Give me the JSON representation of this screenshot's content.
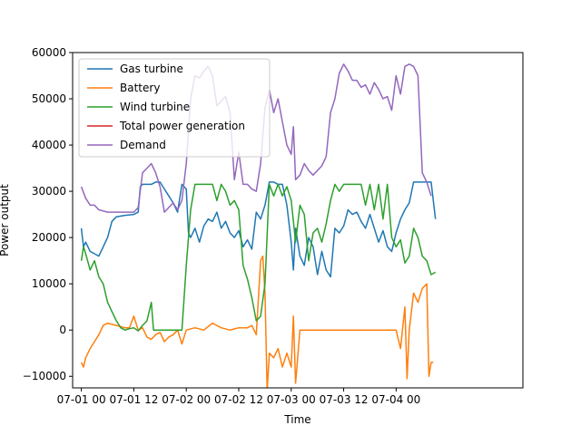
{
  "chart_data": {
    "type": "line",
    "title": "",
    "xlabel": "Time",
    "ylabel": "Power output",
    "x_unit": "hours since 07-01 00",
    "xlim": [
      -2,
      101
    ],
    "ylim": [
      -12500,
      60000
    ],
    "x_ticks": [
      {
        "x": 0,
        "label": "07-01 00"
      },
      {
        "x": 12,
        "label": "07-01 12"
      },
      {
        "x": 24,
        "label": "07-02 00"
      },
      {
        "x": 36,
        "label": "07-02 12"
      },
      {
        "x": 48,
        "label": "07-03 00"
      },
      {
        "x": 60,
        "label": "07-03 12"
      },
      {
        "x": 72,
        "label": "07-04 00"
      }
    ],
    "y_ticks": [
      -10000,
      0,
      10000,
      20000,
      30000,
      40000,
      50000,
      60000
    ],
    "y_tick_labels": [
      "−10000",
      "0",
      "10000",
      "20000",
      "30000",
      "40000",
      "50000",
      "60000"
    ],
    "grid": false,
    "legend_position": "top-left",
    "series": [
      {
        "name": "Gas turbine",
        "color": "#1f77b4",
        "points": [
          [
            0,
            22000
          ],
          [
            0.5,
            18000
          ],
          [
            1,
            19000
          ],
          [
            2,
            17000
          ],
          [
            3,
            16500
          ],
          [
            4,
            16000
          ],
          [
            5,
            18000
          ],
          [
            6,
            20000
          ],
          [
            7,
            23500
          ],
          [
            8,
            24500
          ],
          [
            10,
            24800
          ],
          [
            12,
            25000
          ],
          [
            13,
            25500
          ],
          [
            13.5,
            31000
          ],
          [
            14,
            31500
          ],
          [
            16,
            31500
          ],
          [
            17,
            32000
          ],
          [
            18,
            32000
          ],
          [
            19,
            30500
          ],
          [
            20,
            29000
          ],
          [
            21,
            27500
          ],
          [
            22,
            25500
          ],
          [
            23,
            31500
          ],
          [
            24,
            30500
          ],
          [
            24.5,
            21000
          ],
          [
            25,
            20000
          ],
          [
            26,
            22000
          ],
          [
            27,
            19000
          ],
          [
            28,
            22500
          ],
          [
            29,
            24000
          ],
          [
            30,
            23500
          ],
          [
            31,
            25500
          ],
          [
            32,
            22000
          ],
          [
            33,
            23500
          ],
          [
            34,
            21000
          ],
          [
            35,
            20000
          ],
          [
            36,
            21500
          ],
          [
            37,
            18000
          ],
          [
            38,
            19500
          ],
          [
            39,
            17500
          ],
          [
            40,
            25500
          ],
          [
            41,
            24000
          ],
          [
            42,
            27000
          ],
          [
            43,
            32000
          ],
          [
            44,
            32000
          ],
          [
            45,
            31500
          ],
          [
            46,
            31500
          ],
          [
            47,
            27000
          ],
          [
            48,
            19000
          ],
          [
            48.5,
            13000
          ],
          [
            49,
            22000
          ],
          [
            50,
            16000
          ],
          [
            51,
            14000
          ],
          [
            52,
            20000
          ],
          [
            53,
            18000
          ],
          [
            54,
            12000
          ],
          [
            55,
            17000
          ],
          [
            56,
            13000
          ],
          [
            57,
            11500
          ],
          [
            58,
            22000
          ],
          [
            59,
            21000
          ],
          [
            60,
            22500
          ],
          [
            61,
            26000
          ],
          [
            62,
            25000
          ],
          [
            63,
            25500
          ],
          [
            64,
            23500
          ],
          [
            65,
            22000
          ],
          [
            66,
            25000
          ],
          [
            67,
            22000
          ],
          [
            68,
            19000
          ],
          [
            69,
            21500
          ],
          [
            70,
            18000
          ],
          [
            71,
            17000
          ],
          [
            72,
            21000
          ],
          [
            73,
            24000
          ],
          [
            74,
            26000
          ],
          [
            75,
            27500
          ],
          [
            76,
            32000
          ],
          [
            80,
            32000
          ],
          [
            81,
            24000
          ]
        ]
      },
      {
        "name": "Battery",
        "color": "#ff7f0e",
        "points": [
          [
            0,
            -7000
          ],
          [
            0.5,
            -8000
          ],
          [
            1,
            -6000
          ],
          [
            2,
            -4000
          ],
          [
            3,
            -2500
          ],
          [
            4,
            -1000
          ],
          [
            5,
            1000
          ],
          [
            6,
            1500
          ],
          [
            8,
            1000
          ],
          [
            10,
            500
          ],
          [
            11,
            500
          ],
          [
            12,
            3000
          ],
          [
            13,
            0
          ],
          [
            14,
            500
          ],
          [
            15,
            -1500
          ],
          [
            16,
            -2000
          ],
          [
            17,
            -1000
          ],
          [
            18,
            -500
          ],
          [
            19,
            -2500
          ],
          [
            20,
            -1500
          ],
          [
            21,
            -1000
          ],
          [
            22,
            0
          ],
          [
            23,
            -3000
          ],
          [
            24,
            0
          ],
          [
            26,
            500
          ],
          [
            28,
            0
          ],
          [
            30,
            1500
          ],
          [
            32,
            500
          ],
          [
            34,
            0
          ],
          [
            36,
            500
          ],
          [
            38,
            500
          ],
          [
            39,
            1000
          ],
          [
            40,
            -1000
          ],
          [
            41,
            15000
          ],
          [
            41.5,
            16000
          ],
          [
            42,
            8000
          ],
          [
            42.5,
            -13000
          ],
          [
            43,
            -5000
          ],
          [
            44,
            -6000
          ],
          [
            45,
            -4000
          ],
          [
            46,
            -8000
          ],
          [
            47,
            -5000
          ],
          [
            48,
            -8000
          ],
          [
            48.5,
            3000
          ],
          [
            49,
            -11500
          ],
          [
            50,
            0
          ],
          [
            52,
            0
          ],
          [
            55,
            0
          ],
          [
            58,
            0
          ],
          [
            60,
            0
          ],
          [
            62,
            0
          ],
          [
            65,
            0
          ],
          [
            68,
            0
          ],
          [
            70,
            0
          ],
          [
            71,
            0
          ],
          [
            72,
            0
          ],
          [
            73,
            -4000
          ],
          [
            74,
            5000
          ],
          [
            74.5,
            -10500
          ],
          [
            75,
            0
          ],
          [
            76,
            8000
          ],
          [
            77,
            6000
          ],
          [
            78,
            9000
          ],
          [
            79,
            10000
          ],
          [
            79.5,
            -10000
          ],
          [
            80,
            -7000
          ],
          [
            80.5,
            -7000
          ]
        ]
      },
      {
        "name": "Wind turbine",
        "color": "#2ca02c",
        "points": [
          [
            0,
            15000
          ],
          [
            0.5,
            18000
          ],
          [
            1,
            16500
          ],
          [
            2,
            13000
          ],
          [
            3,
            15000
          ],
          [
            4,
            11500
          ],
          [
            5,
            10000
          ],
          [
            6,
            6000
          ],
          [
            7,
            4000
          ],
          [
            8,
            2000
          ],
          [
            9,
            500
          ],
          [
            10,
            0
          ],
          [
            11,
            300
          ],
          [
            12,
            500
          ],
          [
            13,
            -200
          ],
          [
            14,
            1000
          ],
          [
            15,
            2000
          ],
          [
            16,
            6000
          ],
          [
            16.5,
            0
          ],
          [
            17,
            0
          ],
          [
            20,
            0
          ],
          [
            23,
            0
          ],
          [
            24,
            14000
          ],
          [
            25,
            26000
          ],
          [
            26,
            31500
          ],
          [
            28,
            31500
          ],
          [
            30,
            31500
          ],
          [
            31,
            28000
          ],
          [
            32,
            31500
          ],
          [
            33,
            30000
          ],
          [
            34,
            27000
          ],
          [
            35,
            28000
          ],
          [
            36,
            26000
          ],
          [
            37,
            14000
          ],
          [
            38,
            11000
          ],
          [
            39,
            7000
          ],
          [
            40,
            2000
          ],
          [
            41,
            3000
          ],
          [
            42,
            10000
          ],
          [
            43,
            31500
          ],
          [
            44,
            29000
          ],
          [
            45,
            31500
          ],
          [
            46,
            29000
          ],
          [
            47,
            31000
          ],
          [
            48,
            28000
          ],
          [
            49,
            19000
          ],
          [
            50,
            27000
          ],
          [
            51,
            25000
          ],
          [
            52,
            15000
          ],
          [
            53,
            21000
          ],
          [
            54,
            22000
          ],
          [
            55,
            19000
          ],
          [
            56,
            23000
          ],
          [
            57,
            28000
          ],
          [
            58,
            31500
          ],
          [
            59,
            30000
          ],
          [
            60,
            31500
          ],
          [
            62,
            31500
          ],
          [
            64,
            31500
          ],
          [
            65,
            27000
          ],
          [
            66,
            31500
          ],
          [
            67,
            26000
          ],
          [
            68,
            31500
          ],
          [
            69,
            24000
          ],
          [
            70,
            31500
          ],
          [
            71,
            20000
          ],
          [
            72,
            18000
          ],
          [
            73,
            19500
          ],
          [
            74,
            14500
          ],
          [
            75,
            16000
          ],
          [
            76,
            22000
          ],
          [
            77,
            20000
          ],
          [
            78,
            16000
          ],
          [
            79,
            15000
          ],
          [
            80,
            12000
          ],
          [
            81,
            12500
          ]
        ]
      },
      {
        "name": "Total power generation",
        "color": "#d62728",
        "points": []
      },
      {
        "name": "Demand",
        "color": "#9467bd",
        "points": [
          [
            0,
            31000
          ],
          [
            1,
            28500
          ],
          [
            2,
            27000
          ],
          [
            3,
            27000
          ],
          [
            4,
            26000
          ],
          [
            6,
            25500
          ],
          [
            8,
            25500
          ],
          [
            10,
            25500
          ],
          [
            12,
            25500
          ],
          [
            13,
            26500
          ],
          [
            14,
            34000
          ],
          [
            15,
            35000
          ],
          [
            16,
            36000
          ],
          [
            17,
            34000
          ],
          [
            18,
            31000
          ],
          [
            19,
            25500
          ],
          [
            20,
            26500
          ],
          [
            21,
            27500
          ],
          [
            22,
            26000
          ],
          [
            23,
            28000
          ],
          [
            24,
            36000
          ],
          [
            25,
            50000
          ],
          [
            26,
            55000
          ],
          [
            27,
            54500
          ],
          [
            28,
            56000
          ],
          [
            29,
            57000
          ],
          [
            30,
            55000
          ],
          [
            31,
            48500
          ],
          [
            32,
            49500
          ],
          [
            33,
            50500
          ],
          [
            34,
            47000
          ],
          [
            35,
            32500
          ],
          [
            36,
            38500
          ],
          [
            37,
            31500
          ],
          [
            38,
            31500
          ],
          [
            39,
            30500
          ],
          [
            40,
            30000
          ],
          [
            41,
            36000
          ],
          [
            42,
            48000
          ],
          [
            43,
            52000
          ],
          [
            44,
            47000
          ],
          [
            45,
            50000
          ],
          [
            46,
            45000
          ],
          [
            47,
            40000
          ],
          [
            48,
            38000
          ],
          [
            48.5,
            44000
          ],
          [
            49,
            32500
          ],
          [
            50,
            33500
          ],
          [
            51,
            36000
          ],
          [
            52,
            34500
          ],
          [
            53,
            33500
          ],
          [
            54,
            34500
          ],
          [
            55,
            35500
          ],
          [
            56,
            37500
          ],
          [
            57,
            47000
          ],
          [
            58,
            50000
          ],
          [
            59,
            55500
          ],
          [
            60,
            57500
          ],
          [
            61,
            56000
          ],
          [
            62,
            54000
          ],
          [
            63,
            54000
          ],
          [
            64,
            52500
          ],
          [
            65,
            53000
          ],
          [
            66,
            51000
          ],
          [
            67,
            53500
          ],
          [
            68,
            52000
          ],
          [
            69,
            50000
          ],
          [
            70,
            50500
          ],
          [
            71,
            47500
          ],
          [
            72,
            55000
          ],
          [
            73,
            51000
          ],
          [
            74,
            57000
          ],
          [
            75,
            57500
          ],
          [
            76,
            57000
          ],
          [
            77,
            55000
          ],
          [
            78,
            34000
          ],
          [
            79,
            32000
          ],
          [
            80,
            29000
          ]
        ]
      }
    ]
  }
}
